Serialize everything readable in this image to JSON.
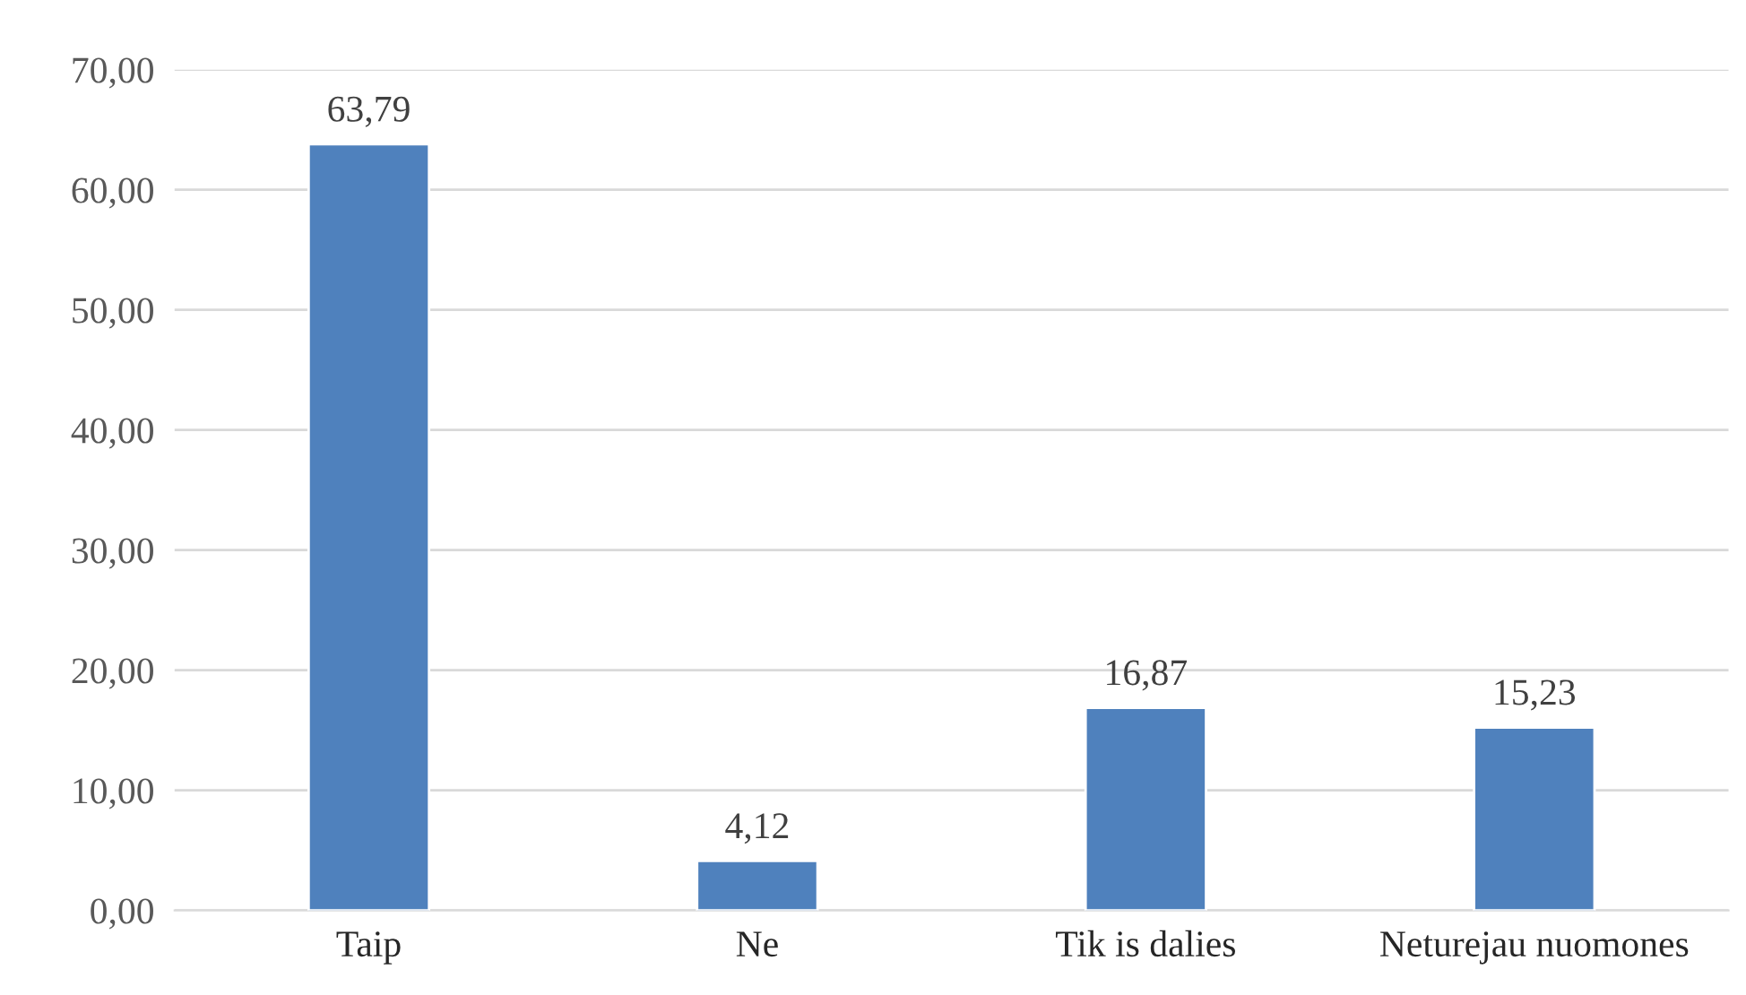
{
  "chart_data": {
    "type": "bar",
    "categories": [
      "Taip",
      "Ne",
      "Tik is dalies",
      "Neturejau nuomones"
    ],
    "values": [
      63.79,
      4.12,
      16.87,
      15.23
    ],
    "value_labels": [
      "63,79",
      "4,12",
      "16,87",
      "15,23"
    ],
    "color": "#4f81bd",
    "ylim": [
      0,
      70
    ],
    "yticks": [
      {
        "value": 0,
        "label": "0,00"
      },
      {
        "value": 10,
        "label": "10,00"
      },
      {
        "value": 20,
        "label": "20,00"
      },
      {
        "value": 30,
        "label": "30,00"
      },
      {
        "value": 40,
        "label": "40,00"
      },
      {
        "value": 50,
        "label": "50,00"
      },
      {
        "value": 60,
        "label": "60,00"
      },
      {
        "value": 70,
        "label": "70,00"
      }
    ],
    "grid": "y",
    "legend": false
  }
}
